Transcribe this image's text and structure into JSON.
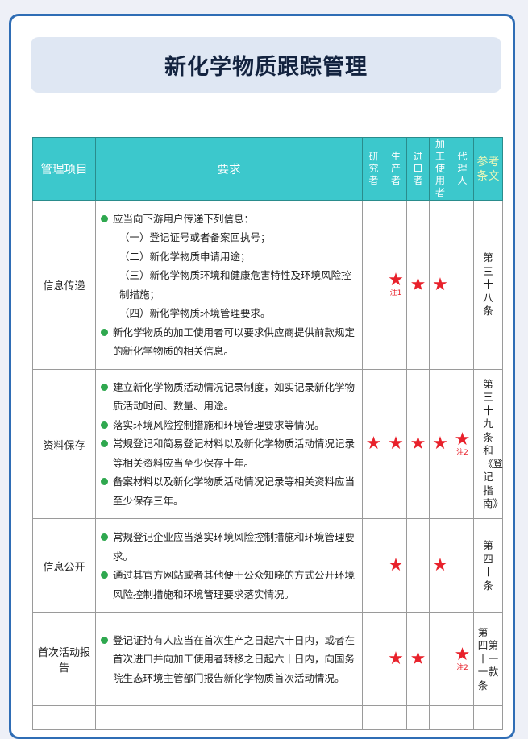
{
  "title": "新化学物质跟踪管理",
  "colors": {
    "border": "#2f6db5",
    "header_bg": "#3cc8cc",
    "title_bg": "#dfe7f3",
    "star": "#e8212b",
    "bullet": "#2fa84f"
  },
  "headers": {
    "item": "管理项目",
    "requirement": "要求",
    "researcher": "研究者",
    "producer": "生产者",
    "importer": "进口者",
    "processor": "加工使用者",
    "agent": "代理人",
    "reference": "参考条文"
  },
  "rows": [
    {
      "item": "信息传递",
      "lines": [
        {
          "bullet": true,
          "text": "应当向下游用户传递下列信息："
        },
        {
          "bullet": false,
          "text": "（一）登记证号或者备案回执号；"
        },
        {
          "bullet": false,
          "text": "（二）新化学物质申请用途；"
        },
        {
          "bullet": false,
          "text": "（三）新化学物质环境和健康危害特性及环境风险控制措施；"
        },
        {
          "bullet": false,
          "text": "（四）新化学物质环境管理要求。"
        },
        {
          "bullet": true,
          "text": "新化学物质的加工使用者可以要求供应商提供前款规定的新化学物质的相关信息。"
        }
      ],
      "marks": {
        "researcher": "",
        "producer": "★",
        "importer": "★",
        "processor": "★",
        "agent": ""
      },
      "notes": {
        "producer": "注1"
      },
      "reference": [
        "第三十八条"
      ]
    },
    {
      "item": "资料保存",
      "lines": [
        {
          "bullet": true,
          "text": "建立新化学物质活动情况记录制度，如实记录新化学物质活动时间、数量、用途。"
        },
        {
          "bullet": true,
          "text": "落实环境风险控制措施和环境管理要求等情况。"
        },
        {
          "bullet": true,
          "text": "常规登记和简易登记材料以及新化学物质活动情况记录等相关资料应当至少保存十年。"
        },
        {
          "bullet": true,
          "text": "备案材料以及新化学物质活动情况记录等相关资料应当至少保存三年。"
        }
      ],
      "marks": {
        "researcher": "★",
        "producer": "★",
        "importer": "★",
        "processor": "★",
        "agent": "★"
      },
      "notes": {
        "agent": "注2"
      },
      "reference": [
        "第三十九条和《登记指南》"
      ]
    },
    {
      "item": "信息公开",
      "lines": [
        {
          "bullet": true,
          "text": "常规登记企业应当落实环境风险控制措施和环境管理要求。"
        },
        {
          "bullet": true,
          "text": "通过其官方网站或者其他便于公众知晓的方式公开环境风险控制措施和环境管理要求落实情况。"
        }
      ],
      "marks": {
        "researcher": "",
        "producer": "★",
        "importer": "",
        "processor": "★",
        "agent": ""
      },
      "notes": {},
      "reference": [
        "第四十条"
      ]
    },
    {
      "item": "首次活动报告",
      "lines": [
        {
          "bullet": true,
          "text": "登记证持有人应当在首次生产之日起六十日内，或者在首次进口并向加工使用者转移之日起六十日内，向国务院生态环境主管部门报告新化学物质首次活动情况。"
        }
      ],
      "marks": {
        "researcher": "",
        "producer": "★",
        "importer": "★",
        "processor": "",
        "agent": "★"
      },
      "notes": {
        "agent": "注2"
      },
      "reference": [
        "第四十一条",
        "第一款"
      ]
    }
  ]
}
